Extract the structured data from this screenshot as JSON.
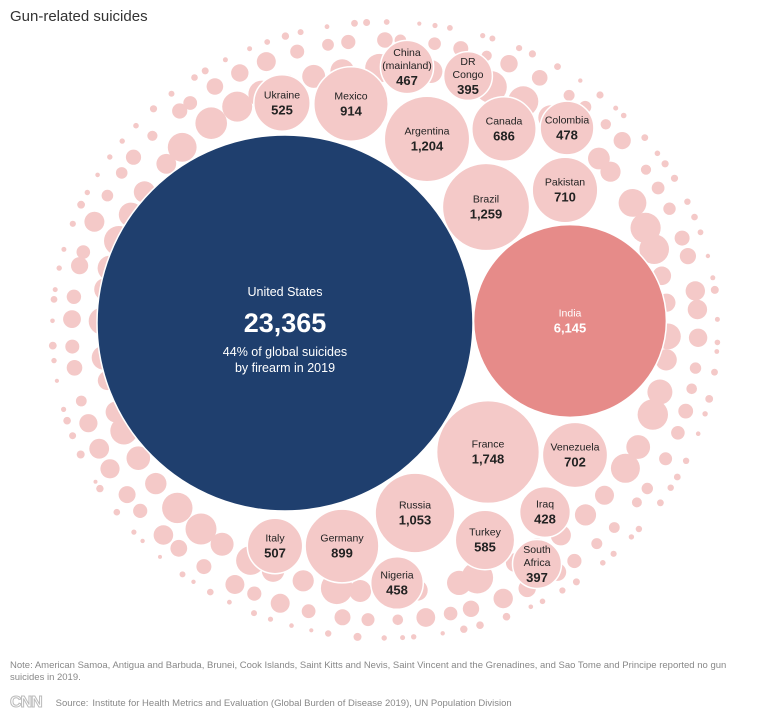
{
  "title": "Gun-related suicides",
  "note": "Note: American Samoa, Antigua and Barbuda, Brunei, Cook Islands, Saint Kitts and Nevis, Saint Vincent and the Grenadines, and Sao Tome and Principe reported no gun suicides in 2019.",
  "footer": {
    "logo": "CNN",
    "source_label": "Source:",
    "source_text": "Institute for Health Metrics and Evaluation (Global Burden of Disease 2019), UN Population Division"
  },
  "colors": {
    "us": "#1f3f6e",
    "india": "#e68b89",
    "other": "#f4c9c8",
    "small": "#f4c9c8"
  },
  "chart_data": {
    "type": "bubble",
    "title": "Gun-related suicides",
    "annotation": [
      "44% of global suicides",
      "by firearm in 2019"
    ],
    "points": [
      {
        "name": "United States",
        "value": 23365,
        "label": "23,365"
      },
      {
        "name": "India",
        "value": 6145,
        "label": "6,145"
      },
      {
        "name": "France",
        "value": 1748,
        "label": "1,748"
      },
      {
        "name": "Brazil",
        "value": 1259,
        "label": "1,259"
      },
      {
        "name": "Argentina",
        "value": 1204,
        "label": "1,204"
      },
      {
        "name": "Russia",
        "value": 1053,
        "label": "1,053"
      },
      {
        "name": "Mexico",
        "value": 914,
        "label": "914"
      },
      {
        "name": "Germany",
        "value": 899,
        "label": "899"
      },
      {
        "name": "Pakistan",
        "value": 710,
        "label": "710"
      },
      {
        "name": "Venezuela",
        "value": 702,
        "label": "702"
      },
      {
        "name": "Canada",
        "value": 686,
        "label": "686"
      },
      {
        "name": "Turkey",
        "value": 585,
        "label": "585"
      },
      {
        "name": "Ukraine",
        "value": 525,
        "label": "525"
      },
      {
        "name": "Italy",
        "value": 507,
        "label": "507"
      },
      {
        "name": "Colombia",
        "value": 478,
        "label": "478"
      },
      {
        "name": "China (mainland)",
        "value": 467,
        "label": "467"
      },
      {
        "name": "Nigeria",
        "value": 458,
        "label": "458"
      },
      {
        "name": "Iraq",
        "value": 428,
        "label": "428"
      },
      {
        "name": "South Africa",
        "value": 397,
        "label": "397"
      },
      {
        "name": "DR Congo",
        "value": 395,
        "label": "395"
      }
    ]
  }
}
